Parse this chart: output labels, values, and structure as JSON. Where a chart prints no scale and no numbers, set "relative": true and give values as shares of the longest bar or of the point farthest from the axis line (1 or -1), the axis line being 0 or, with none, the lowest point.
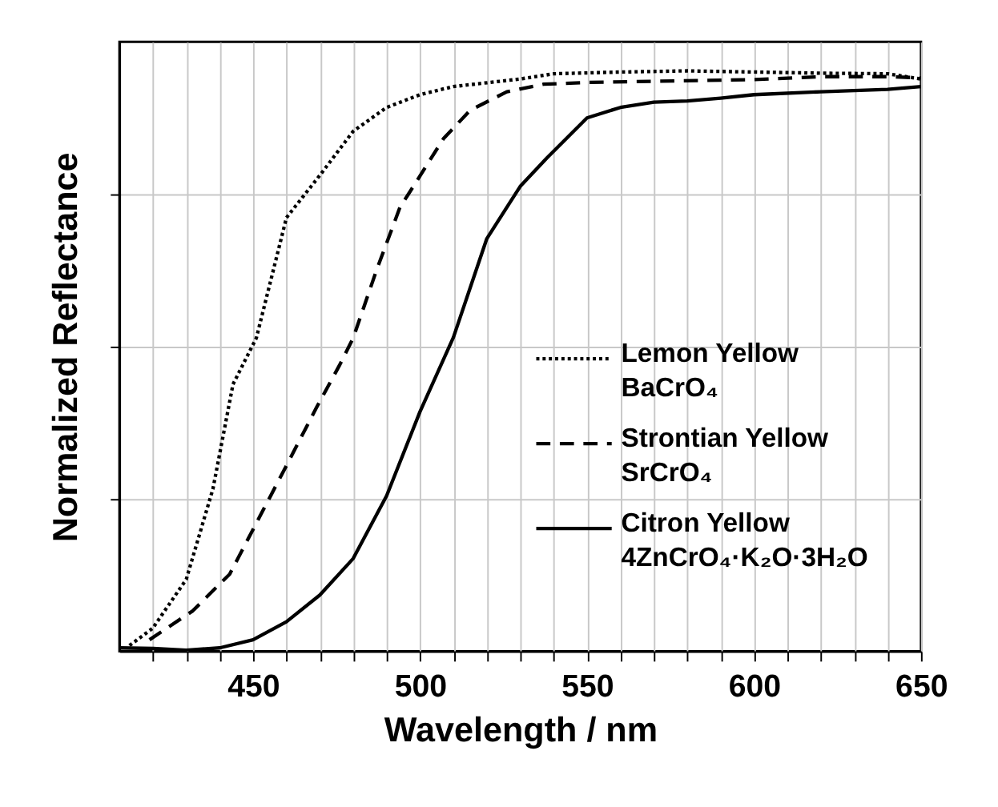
{
  "chart_data": {
    "type": "line",
    "xlabel": "Wavelength / nm",
    "ylabel": "Normalized Reflectance",
    "relative": true,
    "xlim": [
      410,
      650
    ],
    "xticks": [
      {
        "value": 420,
        "label": null
      },
      {
        "value": 430,
        "label": null
      },
      {
        "value": 440,
        "label": null
      },
      450,
      {
        "value": 460,
        "label": null
      },
      {
        "value": 470,
        "label": null
      },
      {
        "value": 480,
        "label": null
      },
      {
        "value": 490,
        "label": null
      },
      500,
      {
        "value": 510,
        "label": null
      },
      {
        "value": 520,
        "label": null
      },
      {
        "value": 530,
        "label": null
      },
      {
        "value": 540,
        "label": null
      },
      550,
      {
        "value": 560,
        "label": null
      },
      {
        "value": 570,
        "label": null
      },
      {
        "value": 580,
        "label": null
      },
      {
        "value": 590,
        "label": null
      },
      600,
      {
        "value": 610,
        "label": null
      },
      {
        "value": 620,
        "label": null
      },
      {
        "value": 630,
        "label": null
      },
      {
        "value": 640,
        "label": null
      },
      650
    ],
    "grid": true,
    "legend": "right",
    "series": [
      {
        "name": "Lemon Yellow\nBaCrO₄",
        "color": "#000000",
        "line_style": "dotted",
        "x": [
          413,
          420,
          430,
          438,
          444,
          451,
          460,
          470,
          480,
          490,
          500,
          510,
          530,
          540,
          560,
          580,
          600,
          620,
          640,
          650
        ],
        "values": [
          0.01,
          0.04,
          0.124,
          0.28,
          0.46,
          0.54,
          0.747,
          0.82,
          0.896,
          0.937,
          0.959,
          0.973,
          0.986,
          0.995,
          0.998,
          1.0,
          0.998,
          0.996,
          0.995,
          0.986
        ]
      },
      {
        "name": "Strontian Yellow\nSrCrO₄",
        "color": "#000000",
        "line_style": "dashed",
        "x": [
          419,
          432,
          443,
          452,
          460,
          469,
          476,
          480,
          487,
          494,
          499,
          507,
          515,
          526,
          537,
          550,
          570,
          600,
          620,
          640,
          650
        ],
        "values": [
          0.02,
          0.07,
          0.133,
          0.232,
          0.32,
          0.42,
          0.494,
          0.54,
          0.657,
          0.765,
          0.81,
          0.883,
          0.932,
          0.964,
          0.977,
          0.98,
          0.982,
          0.985,
          0.99,
          0.99,
          0.988
        ]
      },
      {
        "name": "Citron Yellow\n4ZnCrO₄·K₂O·3H₂O",
        "color": "#000000",
        "line_style": "solid",
        "x": [
          410,
          420,
          430,
          440,
          450,
          460,
          470,
          480,
          490,
          500,
          510,
          520,
          530,
          538,
          550,
          560,
          570,
          580,
          590,
          600,
          620,
          640,
          650
        ],
        "values": [
          0.006,
          0.005,
          0.002,
          0.006,
          0.02,
          0.051,
          0.097,
          0.16,
          0.268,
          0.413,
          0.541,
          0.711,
          0.801,
          0.85,
          0.919,
          0.937,
          0.946,
          0.948,
          0.953,
          0.959,
          0.964,
          0.968,
          0.973
        ]
      }
    ]
  }
}
